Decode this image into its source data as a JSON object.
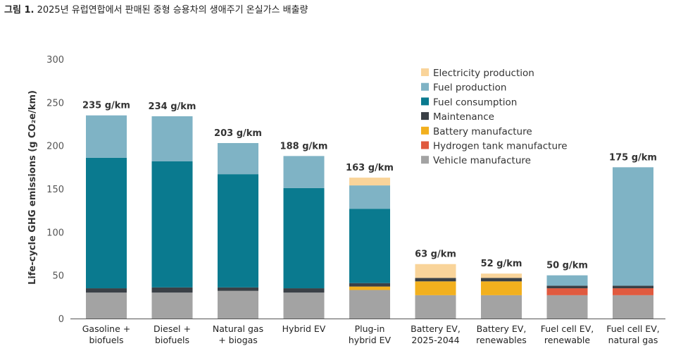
{
  "figure": {
    "label": "그림 1.",
    "caption": "2025년 유럽연합에서 판매된 중형 승용차의 생애주기 온실가스 배출량"
  },
  "chart_data": {
    "type": "bar",
    "stacked": true,
    "title": "",
    "xlabel": "",
    "ylabel": "Life-cycle GHG emissions (g CO₂e/km)",
    "ylim": [
      0,
      300
    ],
    "yticks": [
      0,
      50,
      100,
      150,
      200,
      250,
      300
    ],
    "grid": false,
    "legend_position": "top-right",
    "categories": [
      [
        "Gasoline +",
        "biofuels"
      ],
      [
        "Diesel +",
        "biofuels"
      ],
      [
        "Natural gas",
        "+ biogas"
      ],
      [
        "Hybrid EV"
      ],
      [
        "Plug-in",
        "hybrid EV"
      ],
      [
        "Battery EV,",
        "2025-2044"
      ],
      [
        "Battery EV,",
        "renewables"
      ],
      [
        "Fuel cell EV,",
        "renewable"
      ],
      [
        "Fuel cell EV,",
        "natural gas"
      ]
    ],
    "totals": [
      "235 g/km",
      "234 g/km",
      "203 g/km",
      "188 g/km",
      "163 g/km",
      "63 g/km",
      "52 g/km",
      "50 g/km",
      "175 g/km"
    ],
    "series": [
      {
        "name": "Vehicle manufacture",
        "color": "#a3a3a3",
        "values": [
          30,
          30,
          32,
          30,
          33,
          27,
          27,
          27,
          27
        ]
      },
      {
        "name": "Hydrogen tank manufacture",
        "color": "#e05a3f",
        "values": [
          0,
          0,
          0,
          0,
          0,
          0,
          0,
          8,
          8
        ]
      },
      {
        "name": "Battery manufacture",
        "color": "#f2b01e",
        "values": [
          0,
          0,
          0,
          0,
          4,
          16,
          16,
          0,
          0
        ]
      },
      {
        "name": "Maintenance",
        "color": "#3a4046",
        "values": [
          5,
          6,
          4,
          5,
          4,
          4,
          4,
          3,
          3
        ]
      },
      {
        "name": "Fuel consumption",
        "color": "#0a7a8f",
        "values": [
          151,
          146,
          131,
          116,
          86,
          0,
          0,
          0,
          0
        ]
      },
      {
        "name": "Fuel production",
        "color": "#7fb3c5",
        "values": [
          49,
          52,
          36,
          37,
          27,
          0,
          0,
          12,
          137
        ]
      },
      {
        "name": "Electricity production",
        "color": "#f9d49a",
        "values": [
          0,
          0,
          0,
          0,
          9,
          16,
          5,
          0,
          0
        ]
      }
    ],
    "legend_order": [
      "Electricity production",
      "Fuel production",
      "Fuel consumption",
      "Maintenance",
      "Battery manufacture",
      "Hydrogen tank manufacture",
      "Vehicle manufacture"
    ]
  }
}
